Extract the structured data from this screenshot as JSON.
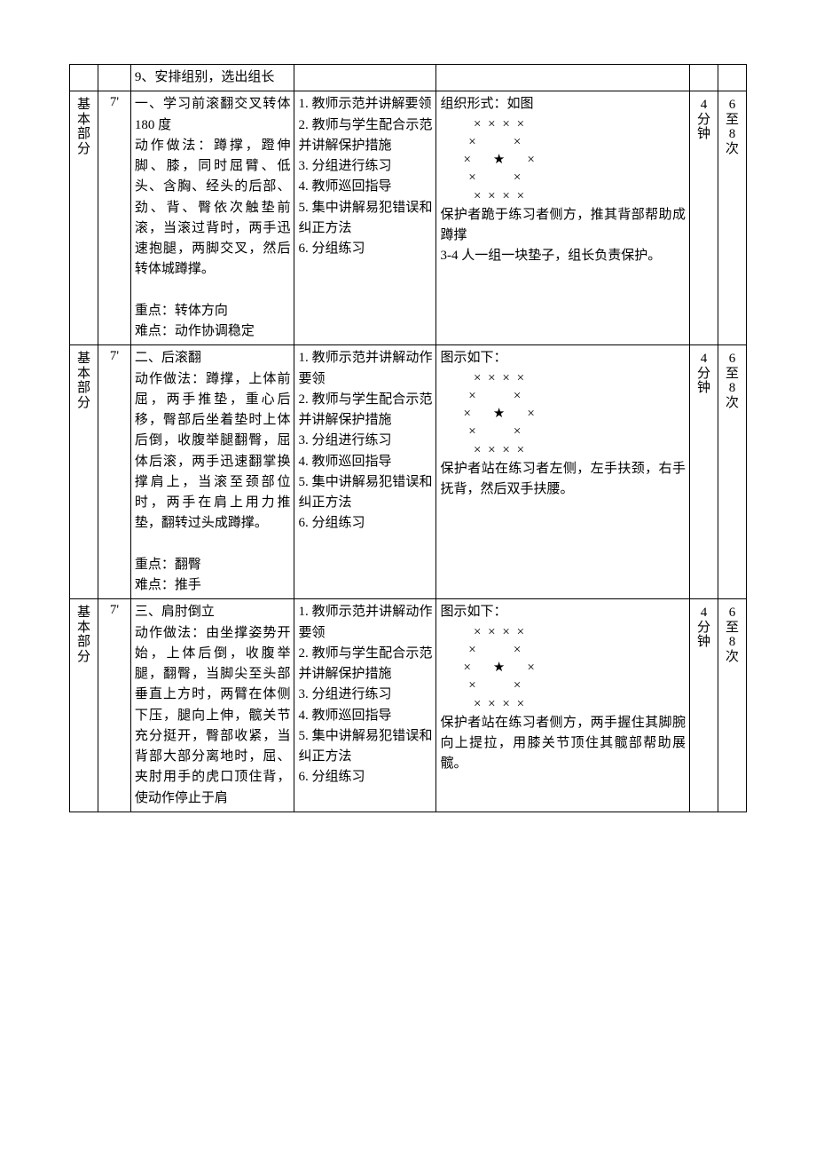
{
  "rows": [
    {
      "section": "",
      "time": "",
      "content_pre": "9、安排组别，选出组长",
      "content": "",
      "points": "",
      "teacher": "",
      "org_intro": "",
      "org_text": "",
      "dur": "",
      "reps": ""
    },
    {
      "section": "基本部分",
      "time": "7'",
      "content_pre": "一、学习前滚翻交叉转体 180 度",
      "content": "动作做法：蹲撑，蹬伸脚、膝，同时屈臂、低头、含胸、经头的后部、劲、背、臀依次触垫前滚，当滚过背时，两手迅速抱腿，两脚交叉，然后转体城蹲撑。",
      "points": "重点：转体方向\n难点：动作协调稳定",
      "teacher": "1. 教师示范并讲解要领\n2. 教师与学生配合示范并讲解保护措施\n3. 分组进行练习\n4. 教师巡回指导\n5. 集中讲解易犯错误和纠正方法\n6. 分组练习",
      "org_intro": "组织形式：如图",
      "org_text": "保护者跪于练习者侧方，推其背部帮助成蹲撑\n3-4 人一组一块垫子，组长负责保护。",
      "dur": "4分钟",
      "reps": "6至8次"
    },
    {
      "section": "基本部分",
      "time": "7'",
      "content_pre": "二、后滚翻",
      "content": "动作做法：蹲撑，上体前屈，两手推垫，重心后移，臀部后坐着垫时上体后倒，收腹举腿翻臀，屈体后滚，两手迅速翻掌换撑肩上，当滚至颈部位时，两手在肩上用力推垫，翻转过头成蹲撑。",
      "points": "重点：翻臀\n难点：推手",
      "teacher": "1. 教师示范并讲解动作要领\n2. 教师与学生配合示范并讲解保护措施\n3. 分组进行练习\n4. 教师巡回指导\n5. 集中讲解易犯错误和纠正方法\n6. 分组练习",
      "org_intro": "图示如下：",
      "org_text": "保护者站在练习者左侧，左手扶颈，右手抚背，然后双手扶腰。",
      "dur": "4分钟",
      "reps": "6至8次"
    },
    {
      "section": "基本部分",
      "time": "7'",
      "content_pre": "三、肩肘倒立",
      "content": "动作做法：由坐撑姿势开始，上体后倒，收腹举腿，翻臀，当脚尖至头部垂直上方时，两臂在体侧下压，腿向上伸，髋关节充分挺开，臀部收紧，当背部大部分离地时，屈、夹肘用手的虎口顶住背，使动作停止于肩",
      "points": "",
      "teacher": "1. 教师示范并讲解动作要领\n2. 教师与学生配合示范并讲解保护措施\n3. 分组进行练习\n4. 教师巡回指导\n5. 集中讲解易犯错误和纠正方法\n6. 分组练习",
      "org_intro": "图示如下：",
      "org_text": "保护者站在练习者侧方，两手握住其脚腕向上提拉，用膝关节顶住其髋部帮助展髋。",
      "dur": "4分钟",
      "reps": "6至8次"
    }
  ],
  "diagram": "  × × × ×\n ×       ×\n×    ★    ×\n ×       ×\n  × × × ×"
}
